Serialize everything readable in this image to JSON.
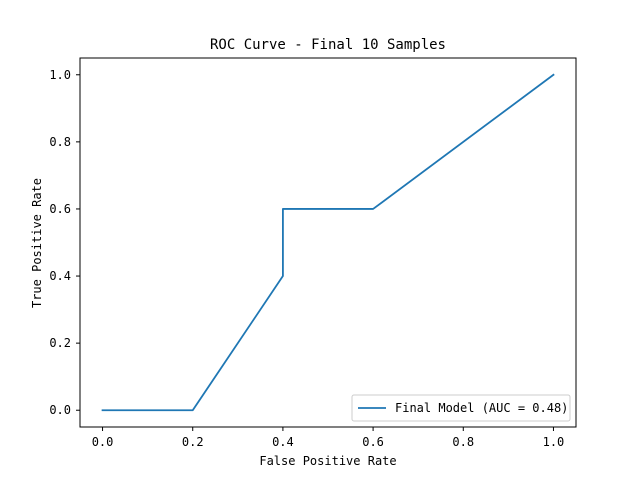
{
  "chart_data": {
    "type": "line",
    "title": "ROC Curve - Final 10 Samples",
    "xlabel": "False Positive Rate",
    "ylabel": "True Positive Rate",
    "xlim": [
      -0.05,
      1.05
    ],
    "ylim": [
      -0.05,
      1.05
    ],
    "xticks": [
      0.0,
      0.2,
      0.4,
      0.6,
      0.8,
      1.0
    ],
    "yticks": [
      0.0,
      0.2,
      0.4,
      0.6,
      0.8,
      1.0
    ],
    "xtick_labels": [
      "0.0",
      "0.2",
      "0.4",
      "0.6",
      "0.8",
      "1.0"
    ],
    "ytick_labels": [
      "0.0",
      "0.2",
      "0.4",
      "0.6",
      "0.8",
      "1.0"
    ],
    "grid": false,
    "legend_position": "bottom-right",
    "series": [
      {
        "name": "Final Model (AUC = 0.48)",
        "color": "#1f77b4",
        "x": [
          0.0,
          0.2,
          0.4,
          0.4,
          0.6,
          1.0
        ],
        "y": [
          0.0,
          0.0,
          0.4,
          0.6,
          0.6,
          1.0
        ]
      }
    ]
  }
}
